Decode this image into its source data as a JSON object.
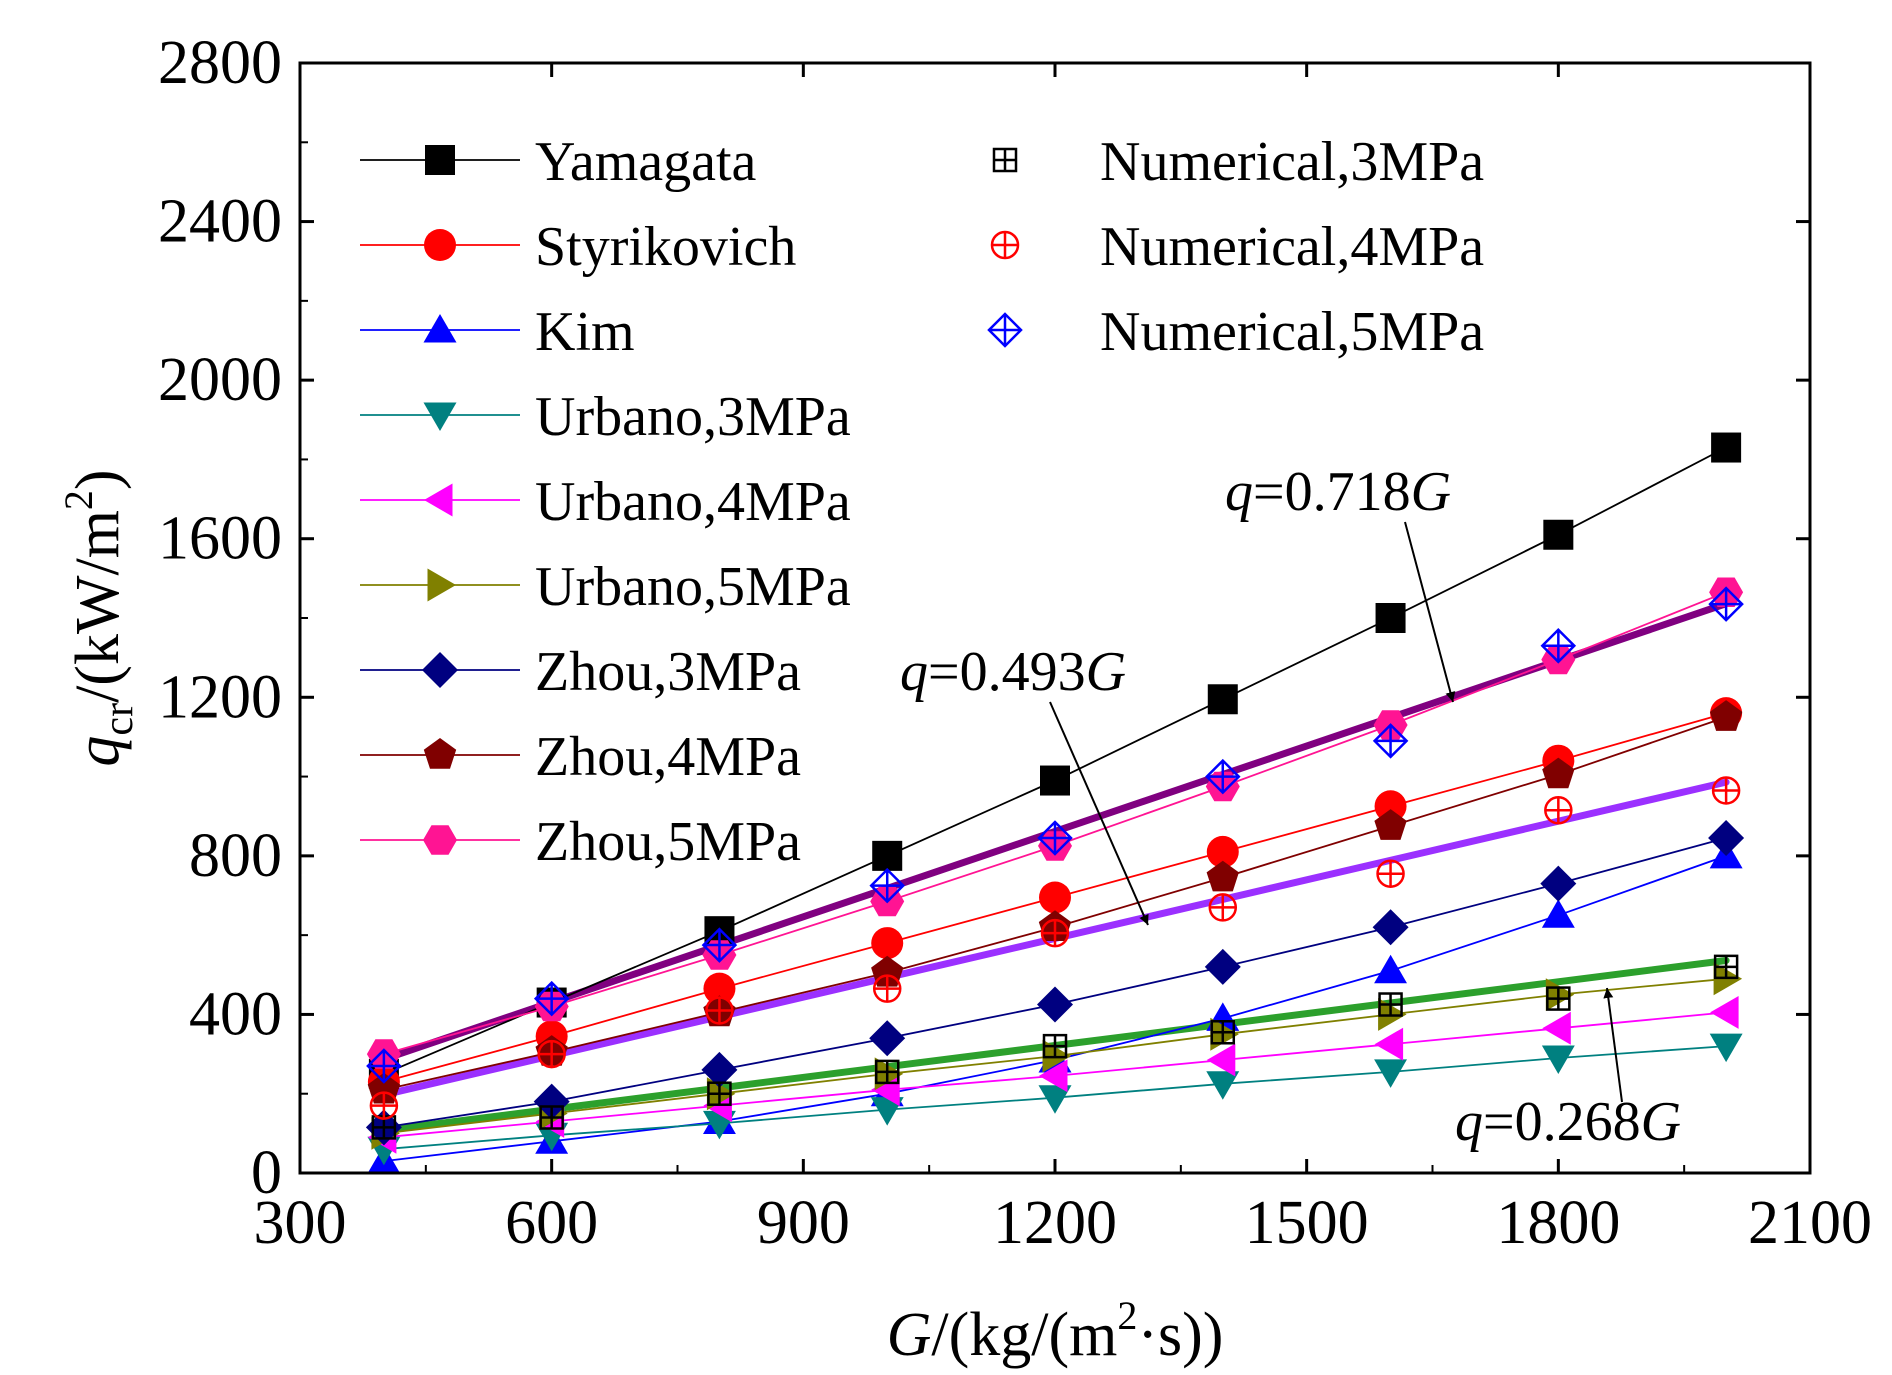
{
  "chart_data": {
    "type": "line",
    "title": "",
    "xlabel": {
      "italic": "G",
      "rest": "/(kg/(m",
      "sup": "2",
      "tail": "·s))"
    },
    "ylabel": {
      "italic": "q",
      "sub": "cr",
      "rest": "/(kW/m",
      "sup": "2",
      "tail": ")"
    },
    "xlim": [
      300,
      2100
    ],
    "ylim": [
      0,
      2800
    ],
    "xticks": [
      "300",
      "600",
      "900",
      "1200",
      "1500",
      "1800",
      "2100"
    ],
    "yticks": [
      "0",
      "400",
      "800",
      "1200",
      "1600",
      "2000",
      "2400",
      "2800"
    ],
    "x": [
      400,
      600,
      800,
      1000,
      1200,
      1400,
      1600,
      1800,
      2000
    ],
    "series": [
      {
        "name": "Yamagata",
        "marker": "square",
        "color": "#000000",
        "line": true,
        "values": [
          250,
          430,
          610,
          800,
          990,
          1195,
          1400,
          1610,
          1830
        ]
      },
      {
        "name": "Styrikovich",
        "marker": "circle",
        "color": "#ff0000",
        "line": true,
        "values": [
          230,
          345,
          465,
          580,
          695,
          810,
          925,
          1040,
          1160
        ]
      },
      {
        "name": "Kim",
        "marker": "triangle-up",
        "color": "#0000ff",
        "line": true,
        "values": [
          30,
          80,
          130,
          200,
          285,
          390,
          510,
          650,
          800
        ]
      },
      {
        "name": "Urbano,3MPa",
        "marker": "triangle-down",
        "color": "#008080",
        "line": true,
        "values": [
          60,
          95,
          125,
          160,
          190,
          225,
          255,
          290,
          320
        ]
      },
      {
        "name": "Urbano,4MPa",
        "marker": "triangle-left",
        "color": "#ff00ff",
        "line": true,
        "values": [
          90,
          130,
          170,
          210,
          245,
          285,
          325,
          365,
          405
        ]
      },
      {
        "name": "Urbano,5MPa",
        "marker": "triangle-right",
        "color": "#808000",
        "line": true,
        "values": [
          100,
          150,
          200,
          250,
          295,
          350,
          400,
          450,
          490
        ]
      },
      {
        "name": "Zhou,3MPa",
        "marker": "diamond",
        "color": "#000080",
        "line": true,
        "values": [
          115,
          180,
          260,
          340,
          425,
          520,
          620,
          730,
          845
        ]
      },
      {
        "name": "Zhou,4MPa",
        "marker": "pentagon",
        "color": "#800000",
        "line": true,
        "values": [
          210,
          305,
          405,
          505,
          620,
          745,
          875,
          1005,
          1150
        ]
      },
      {
        "name": "Zhou,5MPa",
        "marker": "hexagon",
        "color": "#ff1493",
        "line": true,
        "values": [
          300,
          420,
          550,
          685,
          825,
          975,
          1130,
          1295,
          1465
        ]
      },
      {
        "name": "Numerical,3MPa",
        "marker": "square-plus",
        "color": "#000000",
        "line": false,
        "values": [
          115,
          140,
          200,
          255,
          320,
          355,
          425,
          440,
          520
        ]
      },
      {
        "name": "Numerical,4MPa",
        "marker": "circle-plus",
        "color": "#ff0000",
        "line": false,
        "values": [
          170,
          300,
          410,
          465,
          605,
          670,
          755,
          915,
          965
        ]
      },
      {
        "name": "Numerical,5MPa",
        "marker": "diamond-plus",
        "color": "#0000ff",
        "line": false,
        "values": [
          270,
          440,
          575,
          725,
          845,
          1000,
          1090,
          1330,
          1435
        ]
      }
    ],
    "fit_lines": [
      {
        "label_italic": "q",
        "label_eq": "=0.718",
        "label_var": "G",
        "slope": 0.718,
        "color": "#800080"
      },
      {
        "label_italic": "q",
        "label_eq": "=0.493",
        "label_var": "G",
        "slope": 0.493,
        "color": "#9b30ff"
      },
      {
        "label_italic": "q",
        "label_eq": "=0.268",
        "label_var": "G",
        "slope": 0.268,
        "color": "#2ca02c"
      }
    ],
    "fit_x_range": [
      400,
      2000
    ],
    "legend_position": "top-left"
  }
}
